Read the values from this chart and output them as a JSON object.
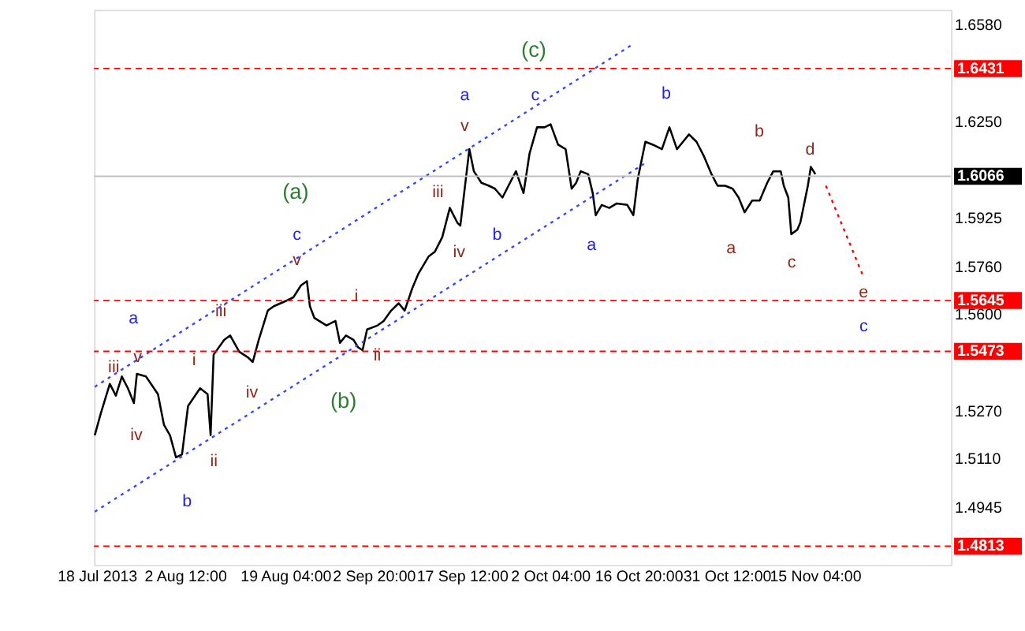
{
  "chart_data": {
    "type": "line",
    "xlim": [
      "2013-07-18T09:00",
      "2013-12-07T19:00"
    ],
    "xticks": [
      {
        "value": "2013-07-18T20:00",
        "label": "18 Jul 2013"
      },
      {
        "value": "2013-08-02T12:00",
        "label": "2 Aug 12:00"
      },
      {
        "value": "2013-08-19T04:00",
        "label": "19 Aug 04:00"
      },
      {
        "value": "2013-09-02T20:00",
        "label": "2 Sep 20:00"
      },
      {
        "value": "2013-09-17T12:00",
        "label": "17 Sep 12:00"
      },
      {
        "value": "2013-10-02T04:00",
        "label": "2 Oct 04:00"
      },
      {
        "value": "2013-10-16T20:00",
        "label": "16 Oct 20:00"
      },
      {
        "value": "2013-10-31T12:00",
        "label": "31 Oct 12:00"
      },
      {
        "value": "2013-11-15T04:00",
        "label": "15 Nov 04:00"
      }
    ],
    "ylim": [
      1.475,
      1.663
    ],
    "yticks": [
      {
        "value": 1.658,
        "label": "1.6580"
      },
      {
        "value": 1.625,
        "label": "1.6250"
      },
      1.5925,
      {
        "value": 1.576,
        "label": "1.5760"
      },
      {
        "value": 1.56,
        "label": "1.5600"
      },
      {
        "value": 1.527,
        "label": "1.5270"
      },
      {
        "value": 1.511,
        "label": "1.5110"
      },
      1.4945
    ],
    "grid": false,
    "series": [
      {
        "color": "#000000",
        "line_style": "solid",
        "x": [
          "2013-07-18T12:00",
          "2013-07-19T12:00",
          "2013-07-21",
          "2013-07-22",
          "2013-07-23",
          "2013-07-24",
          "2013-07-25",
          "2013-07-25T12:00",
          "2013-07-27",
          "2013-07-29",
          "2013-07-30",
          "2013-07-31",
          "2013-08-01",
          "2013-08-02",
          "2013-08-03",
          "2013-08-05",
          "2013-08-06T06:00",
          "2013-08-06T18:00",
          "2013-08-07T06:00",
          "2013-08-09",
          "2013-08-10",
          "2013-08-11T12:00",
          "2013-08-13",
          "2013-08-13T18:00",
          "2013-08-14T18:00",
          "2013-08-16T06:00",
          "2013-08-17T06:00",
          "2013-08-19T12:00",
          "2013-08-20T12:00",
          "2013-08-21T18:00",
          "2013-08-22T18:00",
          "2013-08-23T06:00",
          "2013-08-24",
          "2013-08-26",
          "2013-08-27T12:00",
          "2013-08-28T06:00",
          "2013-08-29T06:00",
          "2013-08-30T12:00",
          "2013-08-31T06:00",
          "2013-09-01",
          "2013-09-01T18:00",
          "2013-09-03T12:00",
          "2013-09-04T12:00",
          "2013-09-05T18:00",
          "2013-09-07",
          "2013-09-08",
          "2013-09-09T06:00",
          "2013-09-10T06:00",
          "2013-09-12",
          "2013-09-13",
          "2013-09-14T06:00",
          "2013-09-15T12:00",
          "2013-09-16T18:00",
          "2013-09-17T06:00",
          "2013-09-18T18:00",
          "2013-09-19T12:00",
          "2013-09-20T18:00",
          "2013-09-22",
          "2013-09-23",
          "2013-09-24T06:00",
          "2013-09-25T12:00",
          "2013-09-26T12:00",
          "2013-09-27T18:00",
          "2013-09-28T18:00",
          "2013-09-30",
          "2013-10-01T06:00",
          "2013-10-02T06:00",
          "2013-10-03T12:00",
          "2013-10-04T18:00",
          "2013-10-05T18:00",
          "2013-10-06T12:00",
          "2013-10-07T06:00",
          "2013-10-08T12:00",
          "2013-10-09T06:00",
          "2013-10-09T18:00",
          "2013-10-10T18:00",
          "2013-10-12",
          "2013-10-13T06:00",
          "2013-10-15",
          "2013-10-16",
          "2013-10-16T18:00",
          "2013-10-18",
          "2013-10-19T06:00",
          "2013-10-20T18:00",
          "2013-10-22",
          "2013-10-23T06:00",
          "2013-10-24T06:00",
          "2013-10-25T06:00",
          "2013-10-26T12:00",
          "2013-10-27T18:00",
          "2013-10-29",
          "2013-10-30",
          "2013-10-31T06:00",
          "2013-11-01T12:00",
          "2013-11-02T12:00",
          "2013-11-03T12:00",
          "2013-11-04T18:00",
          "2013-11-06",
          "2013-11-07T06:00",
          "2013-11-08T06:00",
          "2013-11-09T12:00",
          "2013-11-10",
          "2013-11-10T18:00",
          "2013-11-11T06:00",
          "2013-11-12T06:00",
          "2013-11-12T18:00",
          "2013-11-14",
          "2013-11-14T12:00",
          "2013-11-15T06:00"
        ],
        "values": [
          1.5189,
          1.5263,
          1.5363,
          1.5323,
          1.5388,
          1.5348,
          1.5298,
          1.5397,
          1.5388,
          1.5328,
          1.5224,
          1.5189,
          1.5114,
          1.5124,
          1.5288,
          1.5348,
          1.5328,
          1.5189,
          1.5462,
          1.5512,
          1.5527,
          1.5472,
          1.5452,
          1.5437,
          1.5512,
          1.5611,
          1.5626,
          1.5646,
          1.5656,
          1.5696,
          1.5711,
          1.5626,
          1.5586,
          1.5561,
          1.5576,
          1.5502,
          1.5527,
          1.5512,
          1.5487,
          1.5477,
          1.5547,
          1.5561,
          1.5576,
          1.5611,
          1.5636,
          1.5611,
          1.5686,
          1.5735,
          1.5795,
          1.581,
          1.586,
          1.5959,
          1.5909,
          1.5899,
          1.6158,
          1.6083,
          1.6044,
          1.6034,
          1.6024,
          1.5994,
          1.6044,
          1.6083,
          1.6009,
          1.6143,
          1.6232,
          1.6232,
          1.6242,
          1.6173,
          1.6158,
          1.6024,
          1.6044,
          1.6083,
          1.6073,
          1.6009,
          1.5934,
          1.5969,
          1.5959,
          1.5974,
          1.5969,
          1.5934,
          1.6058,
          1.6183,
          1.6173,
          1.6158,
          1.6232,
          1.6158,
          1.6183,
          1.6208,
          1.6183,
          1.6133,
          1.6073,
          1.6034,
          1.6034,
          1.6024,
          1.5994,
          1.5944,
          1.5984,
          1.5984,
          1.6044,
          1.6083,
          1.6083,
          1.6034,
          1.5994,
          1.587,
          1.5885,
          1.5909,
          1.6034,
          1.6098,
          1.6073
        ]
      },
      {
        "color": "#3344ff",
        "line_style": "dotted",
        "x": [
          "2013-07-18T12:00",
          "2013-10-15T18:00"
        ],
        "values": [
          1.5353,
          1.6511
        ]
      },
      {
        "color": "#3344ff",
        "line_style": "dotted",
        "x": [
          "2013-07-18T12:00",
          "2013-10-17T18:00"
        ],
        "values": [
          1.493,
          1.6108
        ]
      },
      {
        "color": "#ff0000",
        "line_style": "dotted",
        "x": [
          "2013-11-17",
          "2013-11-23T06:00"
        ],
        "values": [
          1.6034,
          1.5725
        ]
      }
    ],
    "ref_lines": [
      {
        "axis": "y",
        "value": 1.6431,
        "label": "1.6431",
        "color": "#ff0000",
        "line_style": "dashed"
      },
      {
        "axis": "y",
        "value": 1.6066,
        "label": "1.6066",
        "color": "#c0c0c0",
        "line_style": "solid"
      },
      {
        "axis": "y",
        "value": 1.5645,
        "label": "1.5645",
        "color": "#ff0000",
        "line_style": "dashed"
      },
      {
        "axis": "y",
        "value": 1.5473,
        "label": "1.5473",
        "color": "#ff0000",
        "line_style": "dashed"
      },
      {
        "axis": "y",
        "value": 1.4813,
        "label": "1.4813",
        "color": "#ff0000",
        "line_style": "dashed"
      }
    ],
    "annotations": [
      "(c)",
      "a",
      "v",
      "c",
      "(a)",
      "iii",
      "c",
      "v",
      "iv",
      "b",
      "a",
      "b",
      "b",
      "d",
      "a",
      "c",
      {
        "text": "e",
        "x": "2013-11-23T06:00",
        "y": 1.5725
      },
      "c",
      "a",
      "iii",
      "i",
      "iii",
      "v",
      "i",
      "ii",
      "(b)",
      "iv",
      "iv",
      "ii",
      "b"
    ]
  }
}
